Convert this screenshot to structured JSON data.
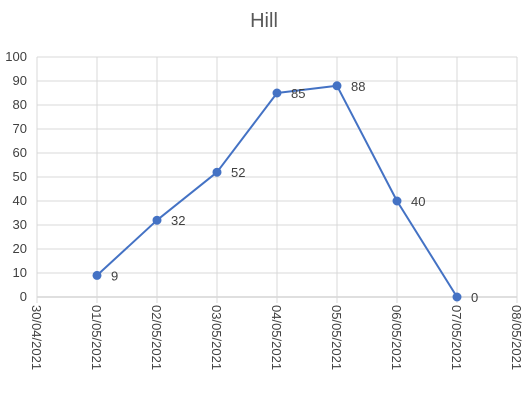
{
  "chart_data": {
    "type": "line",
    "title": "Hill",
    "x": [
      "01/05/2021",
      "02/05/2021",
      "03/05/2021",
      "04/05/2021",
      "05/05/2021",
      "06/05/2021",
      "07/05/2021"
    ],
    "values": [
      9,
      32,
      52,
      85,
      88,
      40,
      0
    ],
    "x_tick_labels": [
      "30/04/2021",
      "01/05/2021",
      "02/05/2021",
      "03/05/2021",
      "04/05/2021",
      "05/05/2021",
      "06/05/2021",
      "07/05/2021",
      "08/05/2021"
    ],
    "y_tick_labels": [
      "0",
      "10",
      "20",
      "30",
      "40",
      "50",
      "60",
      "70",
      "80",
      "90",
      "100"
    ],
    "ylim": [
      0,
      100
    ],
    "grid": true,
    "data_labels": true,
    "colors": {
      "series": "#4472C4",
      "grid": "#d9d9d9",
      "axis": "#bfbfbf"
    }
  }
}
